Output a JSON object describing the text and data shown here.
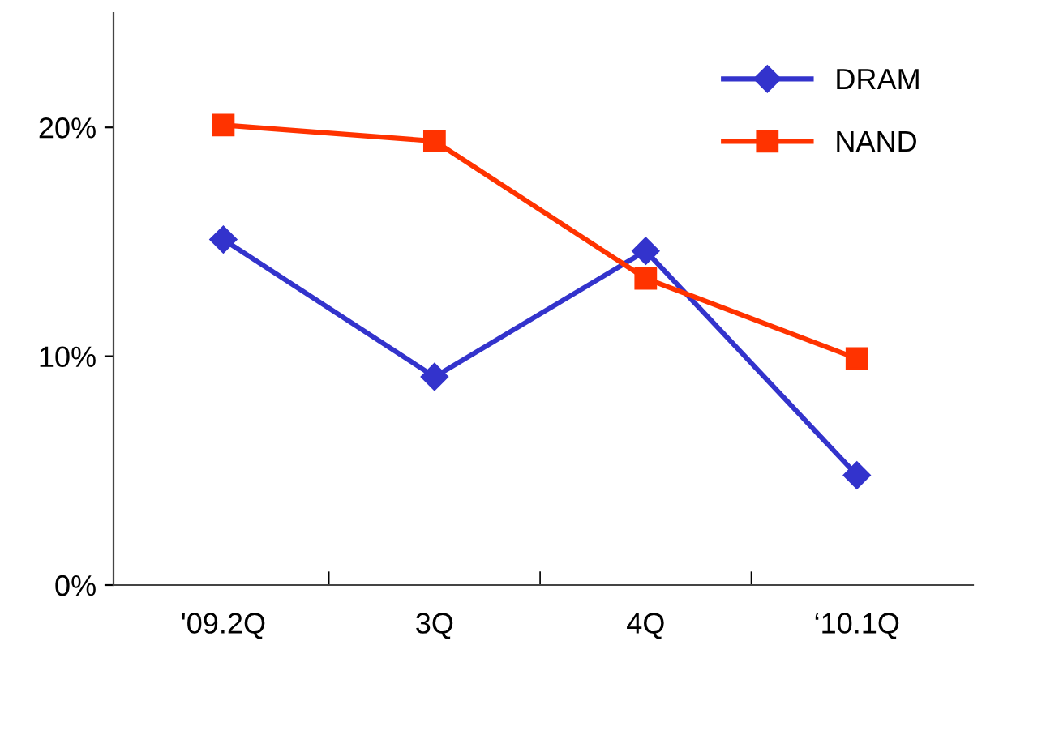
{
  "chart_data": {
    "type": "line",
    "categories": [
      "'09.2Q",
      "3Q",
      "4Q",
      "‘10.1Q"
    ],
    "series": [
      {
        "name": "DRAM",
        "color": "#3333cc",
        "marker": "diamond",
        "values": [
          15.1,
          9.1,
          14.6,
          4.8
        ]
      },
      {
        "name": "NAND",
        "color": "#ff3300",
        "marker": "square",
        "values": [
          20.1,
          19.4,
          13.4,
          9.9
        ]
      }
    ],
    "ylim": [
      0,
      25
    ],
    "yticks": [
      {
        "value": 0,
        "label": "0%"
      },
      {
        "value": 10,
        "label": "10%"
      },
      {
        "value": 20,
        "label": "20%"
      }
    ],
    "grid": false,
    "legend": "top right",
    "line_style": "solid"
  }
}
